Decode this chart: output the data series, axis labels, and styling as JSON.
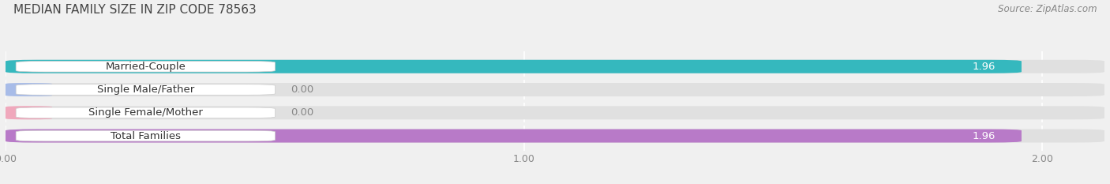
{
  "title": "MEDIAN FAMILY SIZE IN ZIP CODE 78563",
  "source": "Source: ZipAtlas.com",
  "categories": [
    "Married-Couple",
    "Single Male/Father",
    "Single Female/Mother",
    "Total Families"
  ],
  "values": [
    1.96,
    0.0,
    0.0,
    1.96
  ],
  "bar_colors": [
    "#35b8be",
    "#a8bce8",
    "#f0a8bc",
    "#b87ac8"
  ],
  "xlim_max": 2.12,
  "xticks": [
    0.0,
    1.0,
    2.0
  ],
  "xtick_labels": [
    "0.00",
    "1.00",
    "2.00"
  ],
  "background_color": "#f0f0f0",
  "bar_bg_color": "#e0e0e0",
  "title_fontsize": 11,
  "source_fontsize": 8.5,
  "label_fontsize": 9.5,
  "tick_fontsize": 9,
  "bar_height": 0.58,
  "value_label_color_inside": "white",
  "value_label_color_outside": "#888888",
  "cat_label_color": "#333333",
  "pill_bg_color": "#ffffff",
  "grid_color": "#cccccc"
}
